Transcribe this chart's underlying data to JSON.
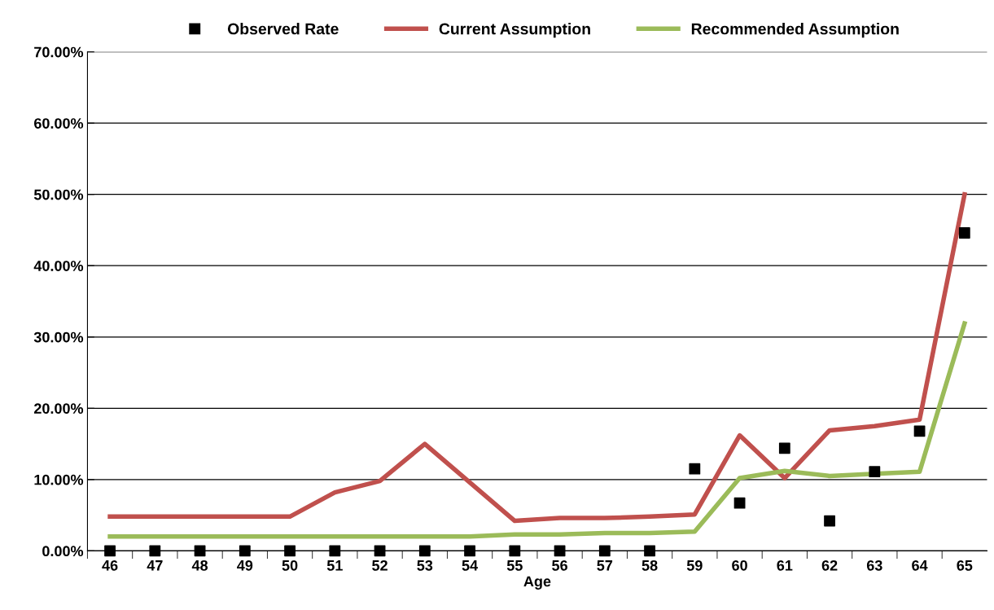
{
  "chart_data": {
    "type": "line",
    "xlabel": "Age",
    "categories": [
      "46",
      "47",
      "48",
      "49",
      "50",
      "51",
      "52",
      "53",
      "54",
      "55",
      "56",
      "57",
      "58",
      "59",
      "60",
      "61",
      "62",
      "63",
      "64",
      "65"
    ],
    "series": [
      {
        "name": "Observed Rate",
        "type": "scatter",
        "marker": "square",
        "color": "#000000",
        "values": [
          0,
          0,
          0,
          0,
          0,
          0,
          0,
          0,
          0,
          0,
          0,
          0,
          0,
          11.5,
          6.7,
          14.4,
          4.2,
          11.1,
          16.8,
          44.6
        ]
      },
      {
        "name": "Current Assumption",
        "marker": "none",
        "color": "#c0504d",
        "values": [
          4.8,
          4.8,
          4.8,
          4.8,
          4.8,
          8.2,
          9.8,
          15.0,
          9.6,
          4.2,
          4.6,
          4.6,
          4.8,
          5.1,
          16.2,
          10.2,
          16.9,
          17.5,
          18.4,
          50.0
        ]
      },
      {
        "name": "Recommended Assumption",
        "marker": "none",
        "color": "#9bbb59",
        "values": [
          2.0,
          2.0,
          2.0,
          2.0,
          2.0,
          2.0,
          2.0,
          2.0,
          2.0,
          2.3,
          2.3,
          2.5,
          2.5,
          2.7,
          10.2,
          11.2,
          10.5,
          10.8,
          11.1,
          31.9
        ]
      }
    ],
    "ylim": [
      0,
      70
    ],
    "yticks": [
      {
        "value": 0,
        "label": "0.00%"
      },
      {
        "value": 10,
        "label": "10.00%"
      },
      {
        "value": 20,
        "label": "20.00%"
      },
      {
        "value": 30,
        "label": "30.00%"
      },
      {
        "value": 40,
        "label": "40.00%"
      },
      {
        "value": 50,
        "label": "50.00%"
      },
      {
        "value": 60,
        "label": "60.00%"
      },
      {
        "value": 70,
        "label": "70.00%"
      }
    ],
    "grid": "y",
    "legend": "top"
  }
}
